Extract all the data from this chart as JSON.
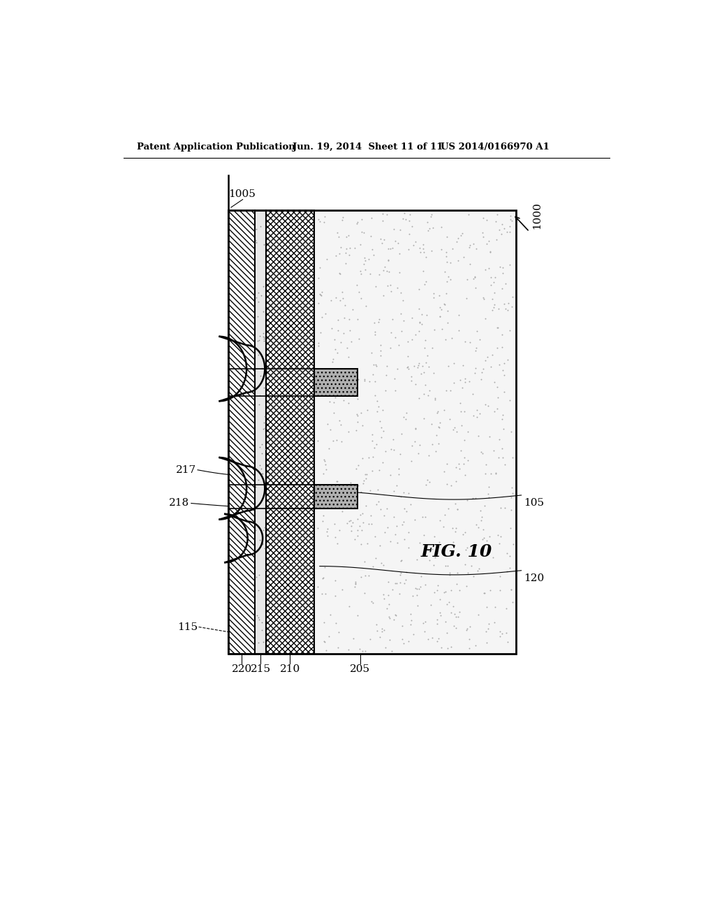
{
  "header_left": "Patent Application Publication",
  "header_mid": "Jun. 19, 2014  Sheet 11 of 11",
  "header_right": "US 2014/0166970 A1",
  "title": "FIG. 10",
  "label_1000": "1000",
  "label_1005": "1005",
  "label_105": "105",
  "label_115": "115",
  "label_120": "120",
  "label_205": "205",
  "label_210": "210",
  "label_215": "215",
  "label_217": "217",
  "label_218": "218",
  "label_220": "220",
  "bg_color": "#ffffff"
}
